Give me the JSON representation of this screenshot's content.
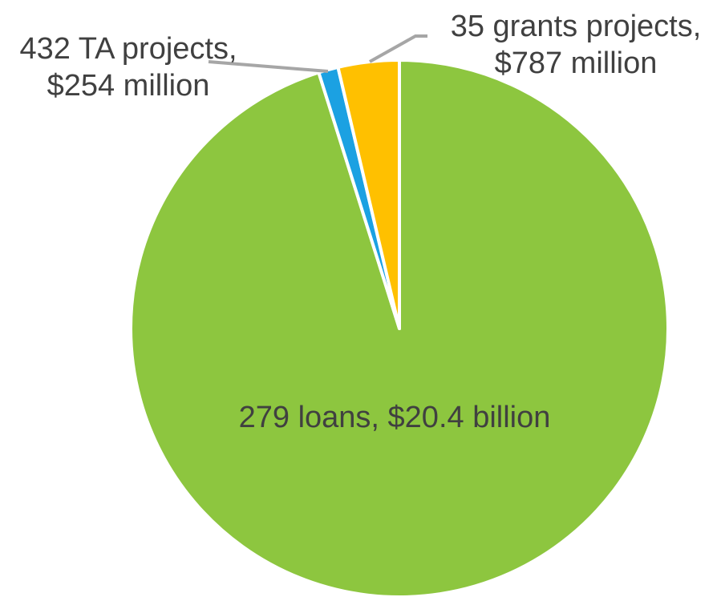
{
  "chart_data": {
    "type": "pie",
    "start_angle_deg": 0,
    "direction": "clockwise",
    "slices": [
      {
        "name": "loans",
        "value": 20400,
        "unit": "million USD",
        "color": "#8dc63f",
        "label_lines": [
          "279 loans, $20.4 billion"
        ]
      },
      {
        "name": "TA projects",
        "value": 254,
        "unit": "million USD",
        "color": "#1ba1e2",
        "label_lines": [
          "432 TA projects,",
          "$254 million"
        ]
      },
      {
        "name": "grants projects",
        "value": 787,
        "unit": "million USD",
        "color": "#ffc000",
        "label_lines": [
          "35 grants projects,",
          "$787 million"
        ]
      }
    ],
    "slice_border_color": "#ffffff",
    "leader_line_color": "#a6a6a6",
    "label_color": "#404040"
  }
}
